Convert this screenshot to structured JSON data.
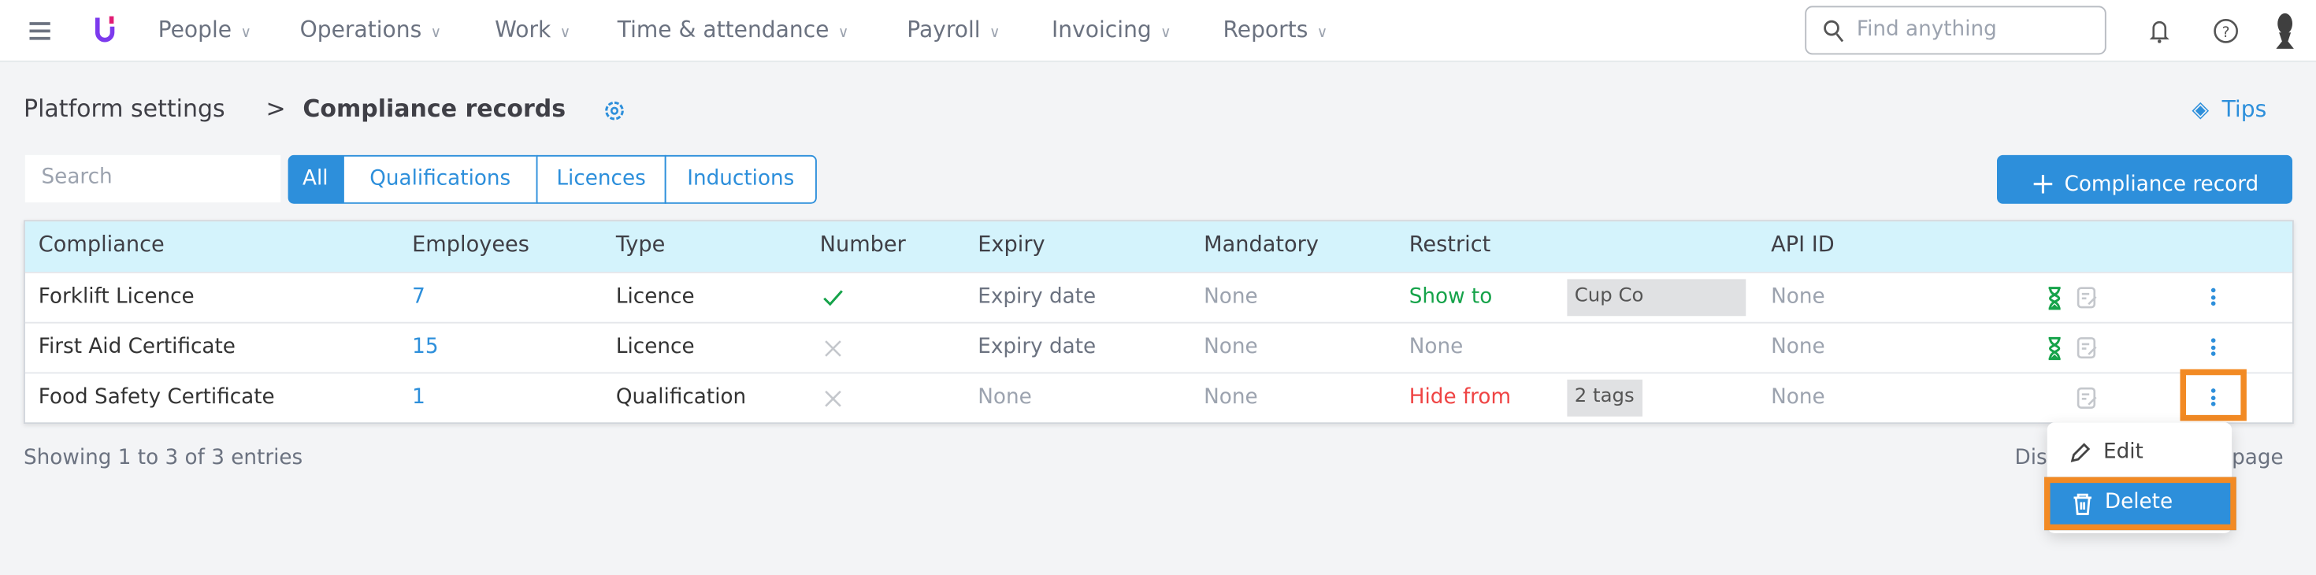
{
  "nav": {
    "items": [
      "People",
      "Operations",
      "Work",
      "Time & attendance",
      "Payroll",
      "Invoicing",
      "Reports"
    ],
    "search_placeholder": "Find anything"
  },
  "breadcrumb": {
    "parent": "Platform settings",
    "current": "Compliance records"
  },
  "tips_label": "Tips",
  "search_placeholder": "Search",
  "filters": [
    "All",
    "Qualifications",
    "Licences",
    "Inductions"
  ],
  "active_filter": "All",
  "add_button": "Compliance record",
  "table": {
    "headers": [
      "Compliance",
      "Employees",
      "Type",
      "Number",
      "Expiry",
      "Mandatory",
      "Restrict",
      "API ID"
    ],
    "rows": [
      {
        "name": "Forklift Licence",
        "employees": "7",
        "type": "Licence",
        "number": "check",
        "expiry": "Expiry date",
        "mandatory": "None",
        "restrict": "Show to",
        "tag": "Cup Co",
        "api_id": "None",
        "hourglass": true
      },
      {
        "name": "First Aid Certificate",
        "employees": "15",
        "type": "Licence",
        "number": "cross",
        "expiry": "Expiry date",
        "mandatory": "None",
        "restrict": "None",
        "tag": "",
        "api_id": "None",
        "hourglass": true
      },
      {
        "name": "Food Safety Certificate",
        "employees": "1",
        "type": "Qualification",
        "number": "cross",
        "expiry": "None",
        "mandatory": "None",
        "restrict": "Hide from",
        "tag": "2 tags",
        "api_id": "None",
        "hourglass": false
      }
    ]
  },
  "footer": {
    "showing": "Showing 1 to 3 of 3 entries",
    "display_left": "Dis",
    "display_right": "page"
  },
  "menu": {
    "edit": "Edit",
    "delete": "Delete"
  },
  "colors": {
    "accent": "#2d8fdb",
    "green": "#16a34a",
    "red": "#ef4444",
    "highlight": "#f28a24",
    "header_bg": "#d4f3fc"
  }
}
